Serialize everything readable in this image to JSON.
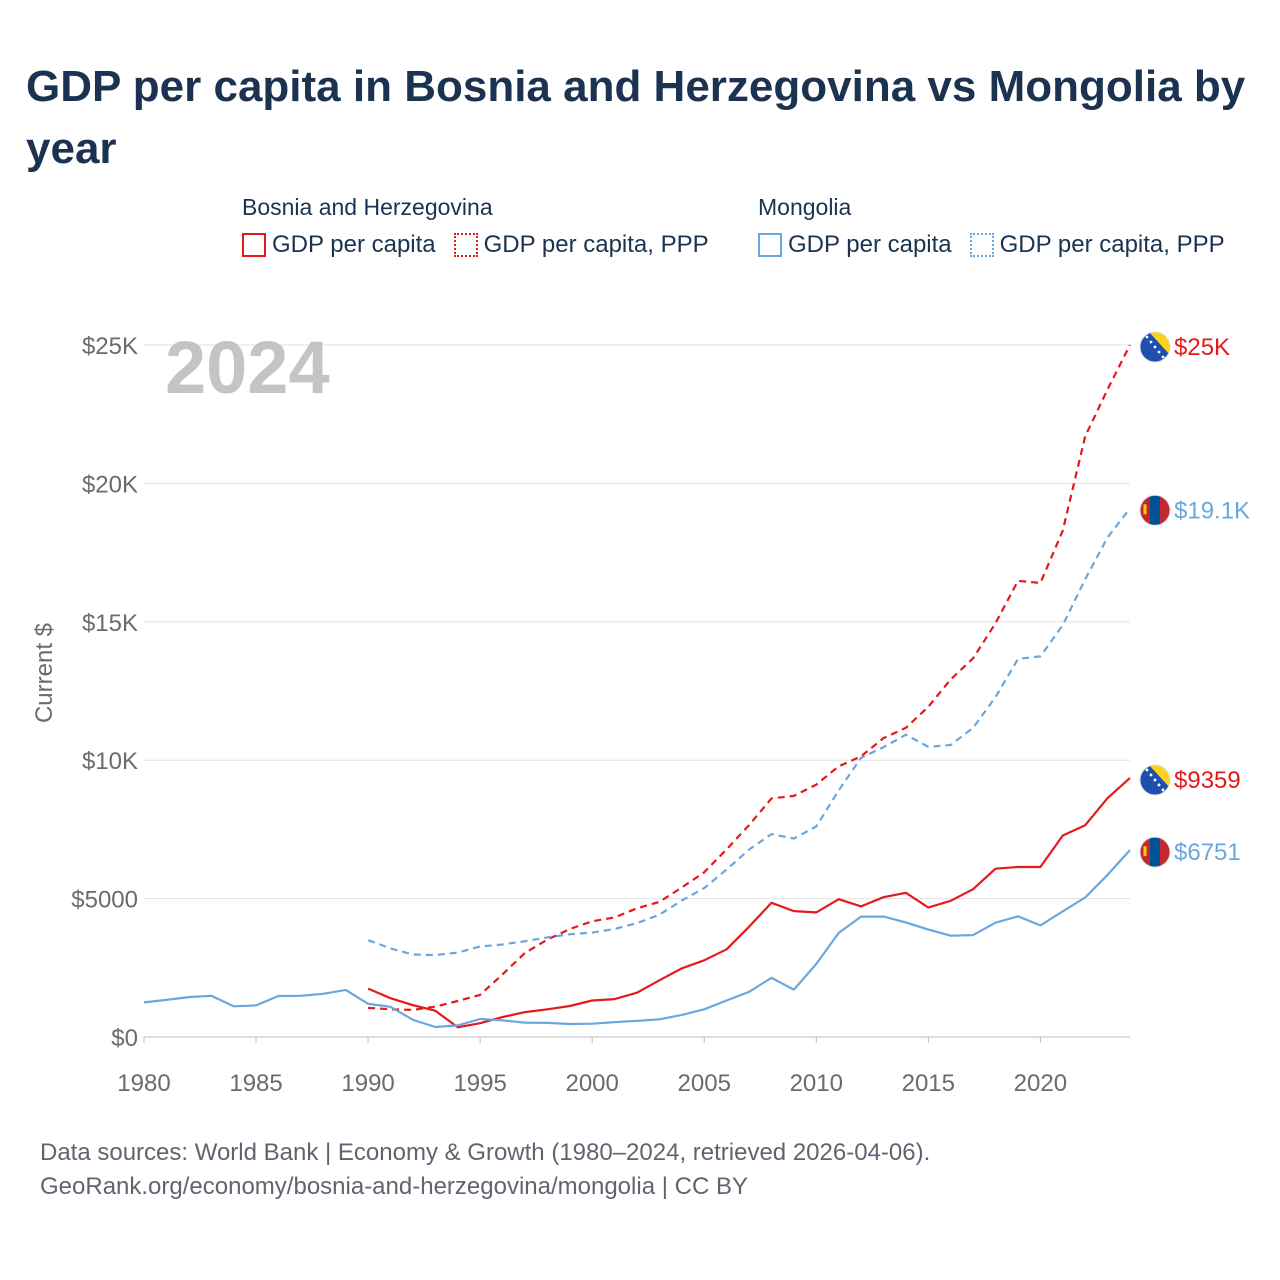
{
  "title": "GDP per capita in Bosnia and Herzegovina vs Mongolia by year",
  "legend": {
    "groups": [
      {
        "name": "Bosnia and Herzegovina",
        "color": "#e4191c",
        "items": [
          {
            "label": "GDP per capita",
            "style": "solid"
          },
          {
            "label": "GDP per capita, PPP",
            "style": "dotted"
          }
        ]
      },
      {
        "name": "Mongolia",
        "color": "#6aa7df",
        "items": [
          {
            "label": "GDP per capita",
            "style": "solid"
          },
          {
            "label": "GDP per capita, PPP",
            "style": "dotted"
          }
        ]
      }
    ]
  },
  "chart_data": {
    "type": "line",
    "year_label": "2024",
    "ylabel": "Current $",
    "xlabel": "",
    "xlim": [
      1980,
      2024
    ],
    "ylim": [
      0,
      25000
    ],
    "x_ticks": [
      1980,
      1985,
      1990,
      1995,
      2000,
      2005,
      2010,
      2015,
      2020
    ],
    "y_ticks": [
      {
        "value": 0,
        "label": "$0"
      },
      {
        "value": 5000,
        "label": "$5000"
      },
      {
        "value": 10000,
        "label": "$10K"
      },
      {
        "value": 15000,
        "label": "$15K"
      },
      {
        "value": 20000,
        "label": "$20K"
      },
      {
        "value": 25000,
        "label": "$25K"
      }
    ],
    "series": [
      {
        "name": "Bosnia and Herzegovina GDP per capita",
        "country": "bosnia",
        "color": "#e4191c",
        "dash": false,
        "end_label": "$9359",
        "x": [
          1990,
          1991,
          1992,
          1993,
          1994,
          1995,
          1996,
          1997,
          1998,
          1999,
          2000,
          2001,
          2002,
          2003,
          2004,
          2005,
          2006,
          2007,
          2008,
          2009,
          2010,
          2011,
          2012,
          2013,
          2014,
          2015,
          2016,
          2017,
          2018,
          2019,
          2020,
          2021,
          2022,
          2023,
          2024
        ],
        "values": [
          1750,
          1400,
          1150,
          950,
          350,
          500,
          720,
          900,
          1000,
          1120,
          1320,
          1370,
          1600,
          2050,
          2480,
          2770,
          3170,
          3980,
          4850,
          4550,
          4500,
          4980,
          4720,
          5050,
          5210,
          4680,
          4920,
          5340,
          6080,
          6140,
          6140,
          7280,
          7650,
          8630,
          9359
        ]
      },
      {
        "name": "Bosnia and Herzegovina GDP per capita, PPP",
        "country": "bosnia",
        "color": "#e4191c",
        "dash": true,
        "end_label": "$25K",
        "x": [
          1990,
          1991,
          1992,
          1993,
          1994,
          1995,
          1996,
          1997,
          1998,
          1999,
          2000,
          2001,
          2002,
          2003,
          2004,
          2005,
          2006,
          2007,
          2008,
          2009,
          2010,
          2011,
          2012,
          2013,
          2014,
          2015,
          2016,
          2017,
          2018,
          2019,
          2020,
          2021,
          2022,
          2023,
          2024
        ],
        "values": [
          1050,
          1000,
          980,
          1100,
          1300,
          1520,
          2260,
          3040,
          3520,
          3900,
          4180,
          4320,
          4650,
          4880,
          5400,
          5950,
          6780,
          7650,
          8620,
          8710,
          9120,
          9780,
          10140,
          10800,
          11170,
          11930,
          12920,
          13680,
          14950,
          16480,
          16400,
          18300,
          21700,
          23400,
          25000
        ]
      },
      {
        "name": "Mongolia GDP per capita",
        "country": "mongolia",
        "color": "#6aa7df",
        "dash": false,
        "end_label": "$6751",
        "x": [
          1980,
          1981,
          1982,
          1983,
          1984,
          1985,
          1986,
          1987,
          1988,
          1989,
          1990,
          1991,
          1992,
          1993,
          1994,
          1995,
          1996,
          1997,
          1998,
          1999,
          2000,
          2001,
          2002,
          2003,
          2004,
          2005,
          2006,
          2007,
          2008,
          2009,
          2010,
          2011,
          2012,
          2013,
          2014,
          2015,
          2016,
          2017,
          2018,
          2019,
          2020,
          2021,
          2022,
          2023,
          2024
        ],
        "values": [
          1250,
          1340,
          1440,
          1490,
          1110,
          1140,
          1480,
          1490,
          1560,
          1700,
          1200,
          1090,
          620,
          360,
          420,
          650,
          600,
          520,
          510,
          470,
          480,
          540,
          580,
          640,
          800,
          1000,
          1320,
          1630,
          2140,
          1710,
          2640,
          3760,
          4350,
          4350,
          4140,
          3880,
          3660,
          3680,
          4130,
          4360,
          4030,
          4540,
          5040,
          5860,
          6751
        ]
      },
      {
        "name": "Mongolia GDP per capita, PPP",
        "country": "mongolia",
        "color": "#6aa7df",
        "dash": true,
        "end_label": "$19.1K",
        "x": [
          1990,
          1991,
          1992,
          1993,
          1994,
          1995,
          1996,
          1997,
          1998,
          1999,
          2000,
          2001,
          2002,
          2003,
          2004,
          2005,
          2006,
          2007,
          2008,
          2009,
          2010,
          2011,
          2012,
          2013,
          2014,
          2015,
          2016,
          2017,
          2018,
          2019,
          2020,
          2021,
          2022,
          2023,
          2024
        ],
        "values": [
          3500,
          3200,
          2980,
          2960,
          3050,
          3270,
          3340,
          3460,
          3600,
          3710,
          3770,
          3900,
          4110,
          4420,
          4930,
          5380,
          6050,
          6770,
          7330,
          7170,
          7610,
          8910,
          10090,
          10470,
          10920,
          10480,
          10550,
          11170,
          12280,
          13660,
          13750,
          14880,
          16540,
          18050,
          19100
        ]
      }
    ]
  },
  "source_lines": [
    "Data sources: World Bank | Economy & Growth (1980–2024, retrieved 2026-04-06).",
    "GeoRank.org/economy/bosnia-and-herzegovina/mongolia | CC BY"
  ]
}
